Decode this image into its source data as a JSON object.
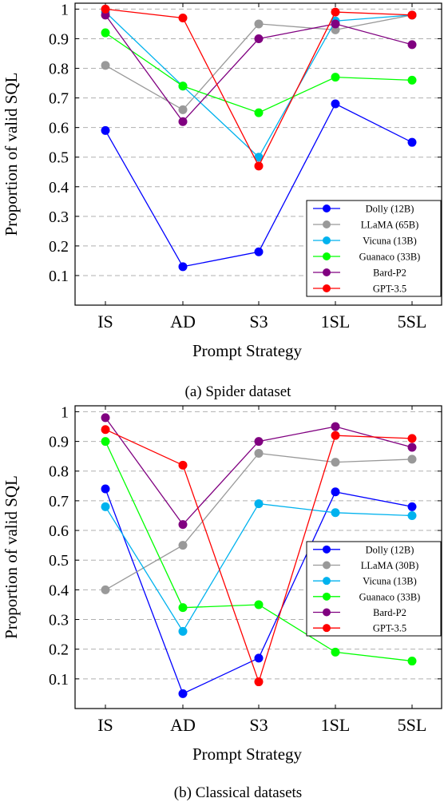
{
  "chart_data": [
    {
      "type": "line",
      "caption": "(a) Spider dataset",
      "xlabel": "Prompt Strategy",
      "ylabel": "Proportion of valid SQL",
      "categories": [
        "IS",
        "AD",
        "S3",
        "1SL",
        "5SL"
      ],
      "yticks": [
        "0.1",
        "0.2",
        "0.3",
        "0.4",
        "0.5",
        "0.6",
        "0.7",
        "0.8",
        "0.9",
        "1"
      ],
      "ylim": [
        0.0,
        1.02
      ],
      "grid": "horizontal dashed",
      "legend_position": "lower-right",
      "series": [
        {
          "name": "Dolly (12B)",
          "color": "#0000ff",
          "values": [
            0.59,
            0.13,
            0.18,
            0.68,
            0.55
          ]
        },
        {
          "name": "LLaMA (65B)",
          "color": "#999999",
          "values": [
            0.81,
            0.66,
            0.95,
            0.93,
            0.98
          ]
        },
        {
          "name": "Vicuna (13B)",
          "color": "#00b2ee",
          "values": [
            0.99,
            0.74,
            0.5,
            0.96,
            0.98
          ]
        },
        {
          "name": "Guanaco (33B)",
          "color": "#00ff00",
          "values": [
            0.92,
            0.74,
            0.65,
            0.77,
            0.76
          ]
        },
        {
          "name": "Bard-P2",
          "color": "#800080",
          "values": [
            0.98,
            0.62,
            0.9,
            0.95,
            0.88
          ]
        },
        {
          "name": "GPT-3.5",
          "color": "#ff0000",
          "values": [
            1.0,
            0.97,
            0.47,
            0.99,
            0.98
          ]
        }
      ]
    },
    {
      "type": "line",
      "caption": "(b) Classical datasets",
      "xlabel": "Prompt Strategy",
      "ylabel": "Proportion of valid SQL",
      "categories": [
        "IS",
        "AD",
        "S3",
        "1SL",
        "5SL"
      ],
      "yticks": [
        "0.1",
        "0.2",
        "0.3",
        "0.4",
        "0.5",
        "0.6",
        "0.7",
        "0.8",
        "0.9",
        "1"
      ],
      "ylim": [
        0.0,
        1.02
      ],
      "grid": "horizontal dashed",
      "legend_position": "lower-right",
      "series": [
        {
          "name": "Dolly (12B)",
          "color": "#0000ff",
          "values": [
            0.74,
            0.05,
            0.17,
            0.73,
            0.68
          ]
        },
        {
          "name": "LLaMA (30B)",
          "color": "#999999",
          "values": [
            0.4,
            0.55,
            0.86,
            0.83,
            0.84
          ]
        },
        {
          "name": "Vicuna (13B)",
          "color": "#00b2ee",
          "values": [
            0.68,
            0.26,
            0.69,
            0.66,
            0.65
          ]
        },
        {
          "name": "Guanaco (33B)",
          "color": "#00ff00",
          "values": [
            0.9,
            0.34,
            0.35,
            0.19,
            0.16
          ]
        },
        {
          "name": "Bard-P2",
          "color": "#800080",
          "values": [
            0.98,
            0.62,
            0.9,
            0.95,
            0.88
          ]
        },
        {
          "name": "GPT-3.5",
          "color": "#ff0000",
          "values": [
            0.94,
            0.82,
            0.09,
            0.92,
            0.91
          ]
        }
      ]
    }
  ]
}
